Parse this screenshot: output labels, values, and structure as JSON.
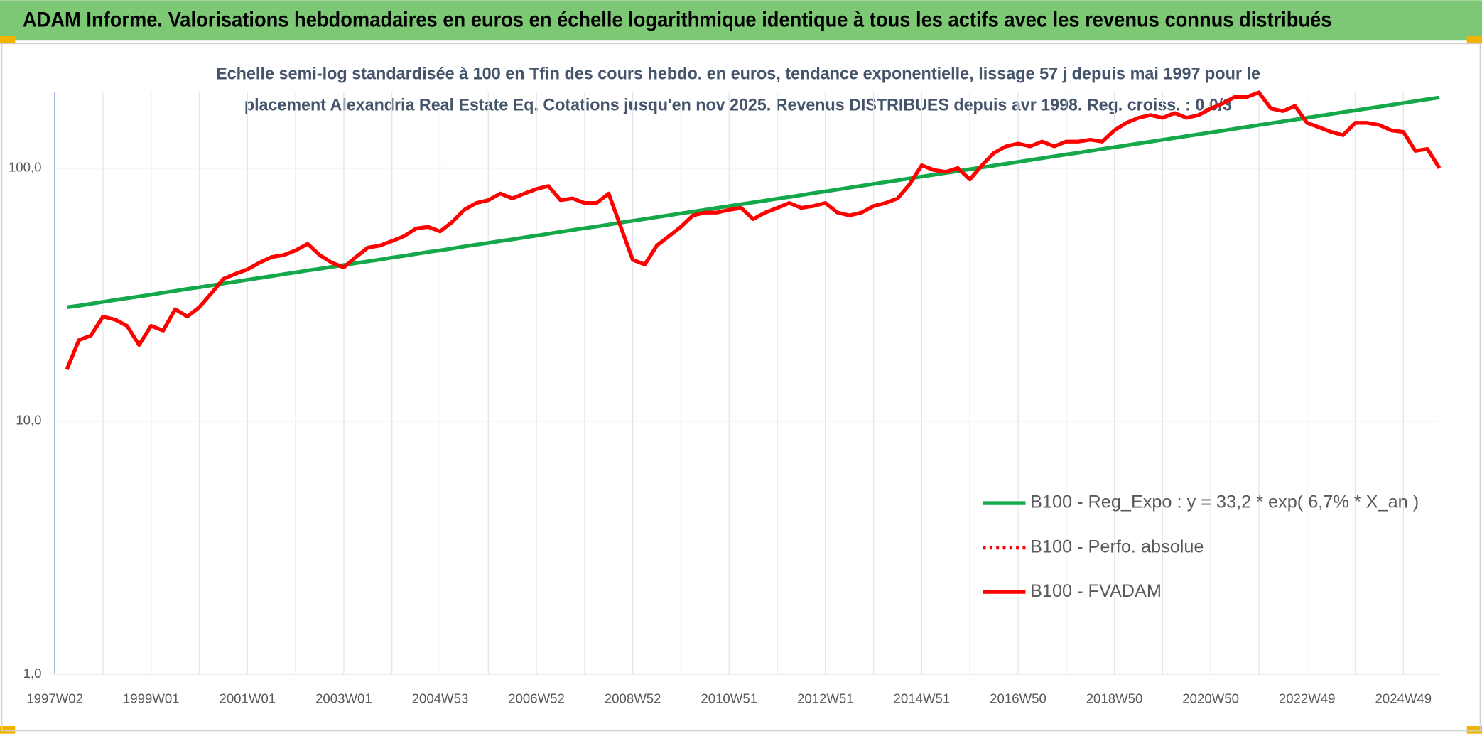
{
  "chart_data": {
    "type": "line",
    "title": "ADAM Informe. Valorisations hebdomadaires en euros en échelle logarithmique identique à tous les actifs avec les revenus connus distribués",
    "subtitle": [
      "Echelle semi-log standardisée à 100 en Tfin des cours hebdo. en euros, tendance exponentielle, lissage 57 j depuis mai 1997 pour le",
      "placement Alexandria Real Estate Eq. Cotations jusqu'en nov 2025. Revenus DISTRIBUES depuis avr 1998. Reg. croiss. : 0,0/3"
    ],
    "log_scale": true,
    "grid": true,
    "legend": "lower right",
    "ylim": [
      1,
      200
    ],
    "yticks": [
      {
        "value": 1,
        "label": "1,0"
      },
      {
        "value": 10,
        "label": "10,0"
      },
      {
        "value": 100,
        "label": "100,0"
      }
    ],
    "categories": [
      "1997W02",
      null,
      null,
      null,
      null,
      null,
      null,
      null,
      "1999W01",
      null,
      null,
      null,
      null,
      null,
      null,
      null,
      "2001W01",
      null,
      null,
      null,
      null,
      null,
      null,
      null,
      "2003W01",
      null,
      null,
      null,
      null,
      null,
      null,
      null,
      "2004W53",
      null,
      null,
      null,
      null,
      null,
      null,
      null,
      "2006W52",
      null,
      null,
      null,
      null,
      null,
      null,
      null,
      "2008W52",
      null,
      null,
      null,
      null,
      null,
      null,
      null,
      "2010W51",
      null,
      null,
      null,
      null,
      null,
      null,
      null,
      "2012W51",
      null,
      null,
      null,
      null,
      null,
      null,
      null,
      "2014W51",
      null,
      null,
      null,
      null,
      null,
      null,
      null,
      "2016W50",
      null,
      null,
      null,
      null,
      null,
      null,
      null,
      "2018W50",
      null,
      null,
      null,
      null,
      null,
      null,
      null,
      "2020W50",
      null,
      null,
      null,
      null,
      null,
      null,
      null,
      "2022W49",
      null,
      null,
      null,
      null,
      null,
      null,
      null,
      "2024W49",
      null,
      null,
      null
    ],
    "series": [
      {
        "name": "B100 - Reg_Expo : y = 33,2 * exp( 6,7% *  X_an )",
        "color": "#14a84a",
        "style": "solid",
        "values": [
          null,
          28.2,
          28.6,
          29.1,
          29.6,
          30.1,
          30.6,
          31.1,
          31.6,
          32.2,
          32.7,
          33.3,
          33.8,
          34.4,
          35.0,
          35.6,
          36.2,
          36.8,
          37.4,
          38.1,
          38.7,
          39.4,
          40.0,
          40.7,
          41.4,
          42.1,
          42.8,
          43.5,
          44.3,
          45.0,
          45.8,
          46.6,
          47.3,
          48.1,
          49.0,
          49.8,
          50.6,
          51.5,
          52.3,
          53.2,
          54.1,
          55.0,
          56.0,
          56.9,
          57.9,
          58.8,
          59.8,
          60.9,
          61.9,
          62.9,
          64.0,
          65.1,
          66.2,
          67.3,
          68.4,
          69.6,
          70.8,
          72.0,
          73.2,
          74.4,
          75.7,
          76.9,
          78.2,
          79.6,
          80.9,
          82.3,
          83.7,
          85.1,
          86.6,
          88.0,
          89.5,
          91.0,
          92.6,
          94.1,
          95.7,
          97.3,
          99.0,
          100.6,
          102.3,
          104.1,
          105.8,
          107.6,
          109.4,
          111.3,
          113.2,
          115.0,
          117.0,
          119.0,
          121.0,
          123.0,
          125.1,
          127.2,
          129.4,
          131.5,
          133.7,
          136.0,
          138.3,
          140.6,
          143.0,
          145.4,
          147.9,
          150.4,
          152.9,
          155.5,
          158.1,
          160.8,
          163.5,
          166.3,
          169.1,
          171.9,
          174.8,
          177.8,
          180.8,
          183.9,
          187.0,
          190.1
        ]
      },
      {
        "name": "B100 - Perfo. absolue",
        "color": "#ff0000",
        "style": "dotted"
      },
      {
        "name": "B100 - FVADAM",
        "color": "#ff0000",
        "style": "solid",
        "values": [
          null,
          16,
          20.9,
          21.8,
          25.9,
          25.2,
          23.8,
          20,
          23.8,
          22.8,
          27.7,
          25.9,
          28.2,
          32,
          36.5,
          38.2,
          39.8,
          42.3,
          44.5,
          45.3,
          47.3,
          50.2,
          45.3,
          42.3,
          40.5,
          44.5,
          48.5,
          49.4,
          51.5,
          53.8,
          57.7,
          58.6,
          56.2,
          61.2,
          68.4,
          72.8,
          74.7,
          79.3,
          75.9,
          79.3,
          82.7,
          84.9,
          74.7,
          75.9,
          72.8,
          72.8,
          79.3,
          58.6,
          43.4,
          41.6,
          49.4,
          53.8,
          58.6,
          65,
          66.7,
          66.7,
          68.4,
          69.6,
          62.9,
          66.7,
          69.6,
          72.8,
          69.6,
          70.8,
          72.8,
          66.7,
          65,
          66.7,
          70.8,
          72.8,
          75.9,
          86.4,
          102.6,
          98.3,
          96.6,
          100,
          90.2,
          102.6,
          114.8,
          121.9,
          125,
          121.9,
          127.3,
          121.9,
          127.3,
          127.3,
          129.5,
          127.3,
          141,
          151,
          158,
          162,
          158,
          165,
          158,
          162,
          172,
          180,
          191,
          191,
          199,
          172,
          168,
          176,
          151,
          145,
          139,
          135,
          151,
          151,
          148,
          141,
          139,
          117,
          119,
          100
        ]
      }
    ]
  }
}
